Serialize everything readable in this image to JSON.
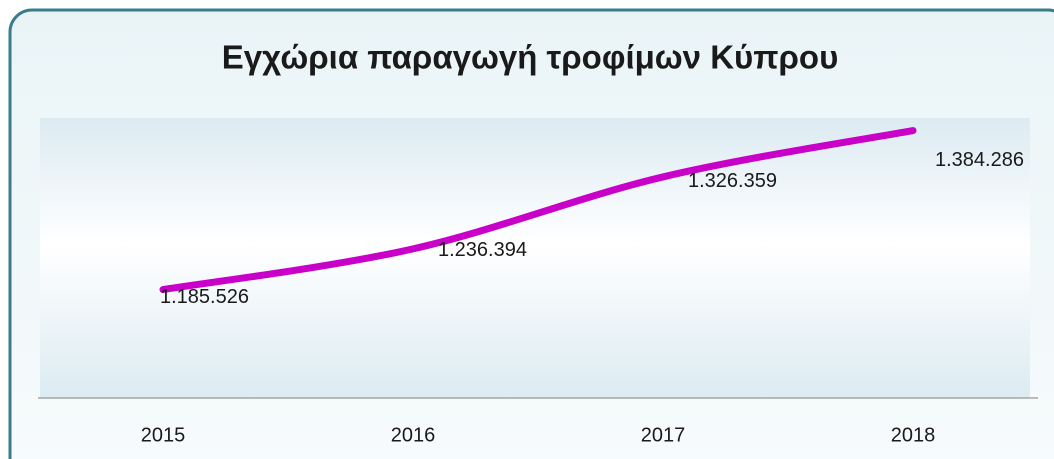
{
  "chart_data": {
    "type": "line",
    "title": "Εγχώρια παραγωγή τροφίμων Κύπρου",
    "categories": [
      "2015",
      "2016",
      "2017",
      "2018"
    ],
    "values": [
      1185526,
      1236394,
      1326359,
      1384286
    ],
    "value_labels": [
      "1.185.526",
      "1.236.394",
      "1.326.359",
      "1.384.286"
    ],
    "color": "#c800c8",
    "ylim": [
      1050000,
      1400000
    ]
  }
}
